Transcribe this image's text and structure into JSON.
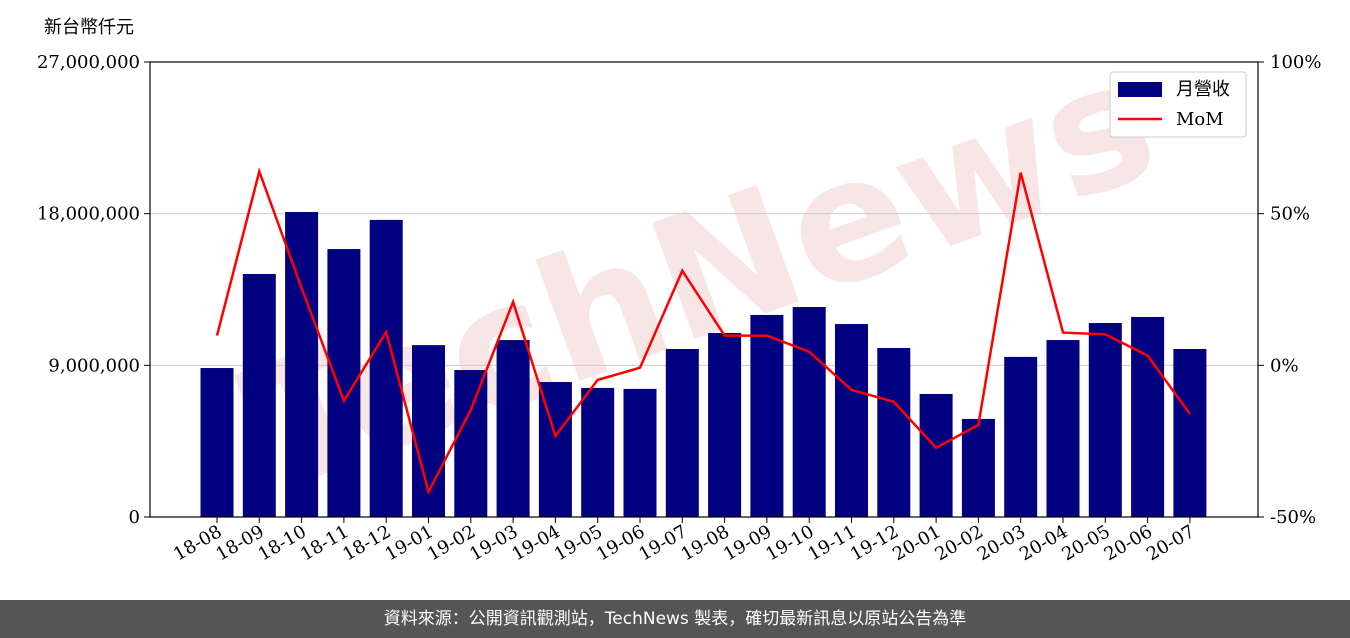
{
  "chart_data": {
    "type": "bar",
    "y_axis_label": "新台幣仟元",
    "watermark": "TechNews",
    "categories": [
      "18-08",
      "18-09",
      "18-10",
      "18-11",
      "18-12",
      "19-01",
      "19-02",
      "19-03",
      "19-04",
      "19-05",
      "19-06",
      "19-07",
      "19-08",
      "19-09",
      "19-10",
      "19-11",
      "19-12",
      "20-01",
      "20-02",
      "20-03",
      "20-04",
      "20-05",
      "20-06",
      "20-07"
    ],
    "series": [
      {
        "name": "月營收",
        "type": "bar",
        "color": "#000080",
        "axis": "y",
        "values": [
          8840000,
          14420000,
          18100000,
          15900000,
          17630000,
          10200000,
          8720000,
          10500000,
          8010000,
          7660000,
          7600000,
          9970000,
          10920000,
          11990000,
          12460000,
          11450000,
          10030000,
          7300000,
          5820000,
          9500000,
          10500000,
          11510000,
          11870000,
          9970000
        ]
      },
      {
        "name": "MoM",
        "type": "line",
        "color": "#ff0000",
        "axis": "y2",
        "values": [
          9.8,
          63.9,
          25.5,
          -11.7,
          11,
          -41.7,
          -14.7,
          20.9,
          -23.3,
          -4.8,
          -0.8,
          31.2,
          9.8,
          9.8,
          4.5,
          -8.1,
          -12,
          -27.2,
          -19.6,
          63.5,
          10.8,
          10.2,
          3.2,
          -16
        ]
      }
    ],
    "ylim": [
      0,
      27000000
    ],
    "yticks": [
      {
        "value": 0,
        "label": "0"
      },
      {
        "value": 9000000,
        "label": "9,000,000"
      },
      {
        "value": 18000000,
        "label": "18,000,000"
      },
      {
        "value": 27000000,
        "label": "27,000,000"
      }
    ],
    "y2lim": [
      -50,
      100
    ],
    "y2ticks": [
      {
        "value": -50,
        "label": "-50%"
      },
      {
        "value": 0,
        "label": "0%"
      },
      {
        "value": 50,
        "label": "50%"
      },
      {
        "value": 100,
        "label": "100%"
      }
    ],
    "grid": true,
    "legend": "upper right"
  },
  "footer": "資料來源：公開資訊觀測站，TechNews 製表，確切最新訊息以原站公告為準"
}
